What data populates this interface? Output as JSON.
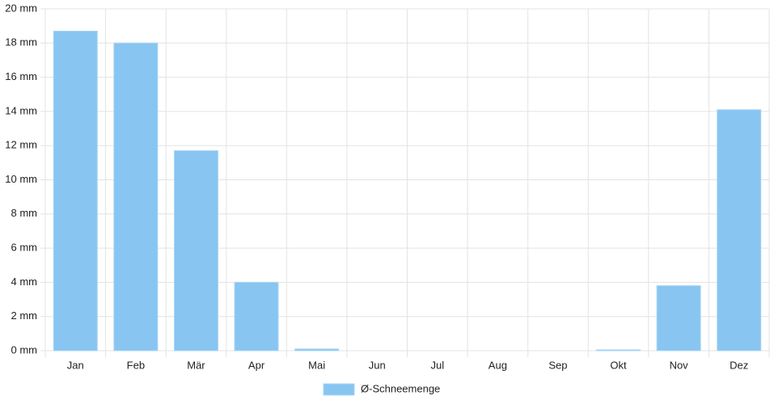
{
  "chart_data": {
    "type": "bar",
    "categories": [
      "Jan",
      "Feb",
      "Mär",
      "Apr",
      "Mai",
      "Jun",
      "Jul",
      "Aug",
      "Sep",
      "Okt",
      "Nov",
      "Dez"
    ],
    "series": [
      {
        "name": "Ø-Schneemenge",
        "color": "#88c5f1",
        "values": [
          18.7,
          18.0,
          11.7,
          4.0,
          0.1,
          0,
          0,
          0,
          0,
          0.05,
          3.8,
          14.1
        ]
      }
    ],
    "ylim": [
      0,
      20
    ],
    "yticks": [
      {
        "value": 0,
        "label": "0 mm"
      },
      {
        "value": 2,
        "label": "2 mm"
      },
      {
        "value": 4,
        "label": "4 mm"
      },
      {
        "value": 6,
        "label": "6 mm"
      },
      {
        "value": 8,
        "label": "8 mm"
      },
      {
        "value": 10,
        "label": "10 mm"
      },
      {
        "value": 12,
        "label": "12 mm"
      },
      {
        "value": 14,
        "label": "14 mm"
      },
      {
        "value": 16,
        "label": "16 mm"
      },
      {
        "value": 18,
        "label": "18 mm"
      },
      {
        "value": 20,
        "label": "20 mm"
      }
    ],
    "grid": true,
    "legend": "bottom"
  }
}
